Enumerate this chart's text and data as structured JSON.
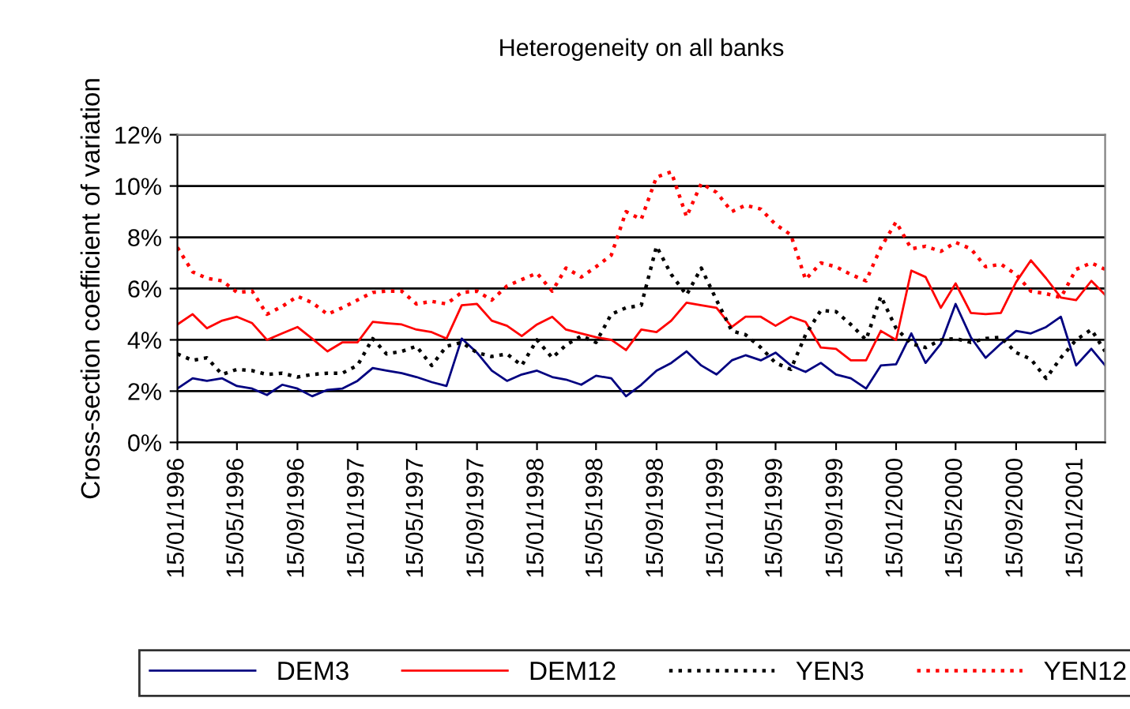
{
  "chart_data": {
    "type": "line",
    "title": "Heterogeneity on all banks",
    "ylabel": "Cross-section coefficient of variation",
    "x": [
      "1996-01-15",
      "1996-02-15",
      "1996-03-15",
      "1996-04-15",
      "1996-05-15",
      "1996-06-15",
      "1996-07-15",
      "1996-08-15",
      "1996-09-15",
      "1996-10-15",
      "1996-11-15",
      "1996-12-15",
      "1997-01-15",
      "1997-02-15",
      "1997-03-15",
      "1997-04-15",
      "1997-05-15",
      "1997-06-15",
      "1997-07-15",
      "1997-08-15",
      "1997-09-15",
      "1997-10-15",
      "1997-11-15",
      "1997-12-15",
      "1998-01-15",
      "1998-02-15",
      "1998-03-15",
      "1998-04-15",
      "1998-05-15",
      "1998-06-15",
      "1998-07-15",
      "1998-08-15",
      "1998-09-15",
      "1998-10-15",
      "1998-11-15",
      "1998-12-15",
      "1999-01-15",
      "1999-02-15",
      "1999-03-15",
      "1999-04-15",
      "1999-05-15",
      "1999-06-15",
      "1999-07-15",
      "1999-08-15",
      "1999-09-15",
      "1999-10-15",
      "1999-11-15",
      "1999-12-15",
      "2000-01-15",
      "2000-02-15",
      "2000-03-15",
      "2000-04-15",
      "2000-05-15",
      "2000-06-15",
      "2000-07-15",
      "2000-08-15",
      "2000-09-15",
      "2000-10-15",
      "2000-11-15",
      "2000-12-15",
      "2001-01-15",
      "2001-02-15",
      "2001-03-15"
    ],
    "series": [
      {
        "name": "DEM3",
        "color": "#000080",
        "line_style": "solid",
        "values": [
          2.1,
          2.5,
          2.4,
          2.5,
          2.2,
          2.1,
          1.85,
          2.25,
          2.1,
          1.8,
          2.05,
          2.1,
          2.4,
          2.9,
          2.8,
          2.7,
          2.55,
          2.35,
          2.2,
          4.05,
          3.5,
          2.8,
          2.4,
          2.65,
          2.8,
          2.55,
          2.45,
          2.25,
          2.6,
          2.5,
          1.8,
          2.25,
          2.8,
          3.1,
          3.55,
          3.0,
          2.65,
          3.2,
          3.4,
          3.2,
          3.5,
          3.0,
          2.75,
          3.1,
          2.65,
          2.5,
          2.1,
          3.0,
          3.05,
          4.25,
          3.1,
          3.85,
          5.4,
          4.1,
          3.3,
          3.85,
          4.35,
          4.25,
          4.5,
          4.9,
          3.0,
          3.65,
          3.0
        ]
      },
      {
        "name": "DEM12",
        "color": "#ff0000",
        "line_style": "solid",
        "values": [
          4.6,
          5.0,
          4.45,
          4.75,
          4.9,
          4.65,
          4.0,
          4.25,
          4.5,
          4.05,
          3.55,
          3.9,
          3.9,
          4.7,
          4.65,
          4.6,
          4.4,
          4.3,
          4.05,
          5.35,
          5.4,
          4.75,
          4.55,
          4.15,
          4.6,
          4.9,
          4.4,
          4.25,
          4.1,
          4.0,
          3.6,
          4.4,
          4.3,
          4.75,
          5.45,
          5.35,
          5.25,
          4.5,
          4.9,
          4.9,
          4.55,
          4.9,
          4.7,
          3.7,
          3.65,
          3.2,
          3.2,
          4.35,
          4.0,
          6.7,
          6.45,
          5.25,
          6.2,
          5.05,
          5.0,
          5.05,
          6.25,
          7.1,
          6.4,
          5.65,
          5.55,
          6.3,
          5.75
        ]
      },
      {
        "name": "YEN3",
        "color": "#000000",
        "line_style": "dotted",
        "values": [
          3.45,
          3.2,
          3.3,
          2.65,
          2.85,
          2.8,
          2.65,
          2.7,
          2.55,
          2.65,
          2.7,
          2.7,
          3.0,
          4.05,
          3.45,
          3.55,
          3.75,
          3.0,
          3.75,
          3.9,
          3.5,
          3.35,
          3.45,
          3.0,
          4.0,
          3.3,
          3.8,
          4.15,
          3.9,
          5.0,
          5.25,
          5.35,
          7.65,
          6.55,
          5.75,
          6.8,
          5.55,
          4.35,
          4.2,
          3.7,
          3.1,
          2.85,
          4.2,
          5.15,
          5.1,
          4.6,
          4.0,
          5.7,
          4.45,
          3.85,
          3.7,
          4.0,
          4.05,
          3.9,
          4.05,
          4.1,
          3.5,
          3.25,
          2.5,
          3.3,
          4.0,
          4.4,
          3.55
        ]
      },
      {
        "name": "YEN12",
        "color": "#ff0000",
        "line_style": "dotted",
        "values": [
          7.6,
          6.65,
          6.4,
          6.3,
          5.85,
          5.9,
          5.0,
          5.3,
          5.7,
          5.45,
          5.0,
          5.25,
          5.55,
          5.85,
          5.9,
          5.9,
          5.4,
          5.5,
          5.4,
          5.85,
          5.9,
          5.55,
          6.1,
          6.35,
          6.6,
          5.9,
          6.8,
          6.45,
          6.85,
          7.3,
          9.0,
          8.7,
          10.35,
          10.55,
          8.8,
          10.1,
          9.75,
          9.0,
          9.25,
          9.1,
          8.5,
          8.1,
          6.35,
          7.0,
          6.85,
          6.55,
          6.3,
          7.6,
          8.6,
          7.55,
          7.65,
          7.45,
          7.8,
          7.55,
          6.85,
          6.95,
          6.55,
          5.9,
          5.8,
          5.65,
          6.75,
          7.0,
          6.75
        ]
      }
    ],
    "xlim": [
      "1996-01-15",
      "2001-03-15"
    ],
    "xticks": [
      {
        "value": "1996-01-15",
        "label": "15/01/1996"
      },
      {
        "value": "1996-05-15",
        "label": "15/05/1996"
      },
      {
        "value": "1996-09-15",
        "label": "15/09/1996"
      },
      {
        "value": "1997-01-15",
        "label": "15/01/1997"
      },
      {
        "value": "1997-05-15",
        "label": "15/05/1997"
      },
      {
        "value": "1997-09-15",
        "label": "15/09/1997"
      },
      {
        "value": "1998-01-15",
        "label": "15/01/1998"
      },
      {
        "value": "1998-05-15",
        "label": "15/05/1998"
      },
      {
        "value": "1998-09-15",
        "label": "15/09/1998"
      },
      {
        "value": "1999-01-15",
        "label": "15/01/1999"
      },
      {
        "value": "1999-05-15",
        "label": "15/05/1999"
      },
      {
        "value": "1999-09-15",
        "label": "15/09/1999"
      },
      {
        "value": "2000-01-15",
        "label": "15/01/2000"
      },
      {
        "value": "2000-05-15",
        "label": "15/05/2000"
      },
      {
        "value": "2000-09-15",
        "label": "15/09/2000"
      },
      {
        "value": "2001-01-15",
        "label": "15/01/2001"
      }
    ],
    "ylim": [
      0,
      12
    ],
    "yticks": [
      {
        "value": 0,
        "label": "0%"
      },
      {
        "value": 2,
        "label": "2%"
      },
      {
        "value": 4,
        "label": "4%"
      },
      {
        "value": 6,
        "label": "6%"
      },
      {
        "value": 8,
        "label": "8%"
      },
      {
        "value": 10,
        "label": "10%"
      },
      {
        "value": 12,
        "label": "12%"
      }
    ],
    "grid": "y",
    "legend": "bottom",
    "marker": "none"
  }
}
